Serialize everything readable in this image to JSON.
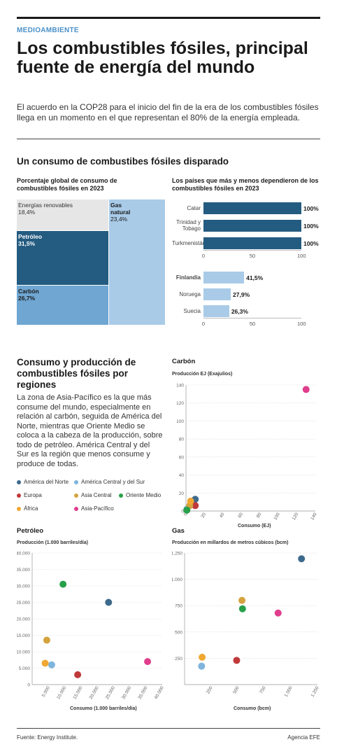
{
  "header": {
    "kicker": "MEDIOAMBIENTE",
    "title": "Los combustibles fósiles, principal fuente de energía del mundo",
    "subtitle": "El acuerdo en la COP28 para el inicio del fin de la era de los combustibles fósiles llega en un momento en el que representan el 80% de la energía empleada."
  },
  "section1": {
    "title": "Un consumo de combustibes fósiles disparado"
  },
  "section2": {
    "title": "Consumo y producción de combustibles fósiles por regiones",
    "text": "La zona de Asia-Pacífico es la que más consume del mundo, especialmente en relación al carbón, seguida de América del Norte, mientras que Oriente Medio se coloca a la cabeza de la producción, sobre todo de petróleo. América Central y del Sur es la región que menos consume y produce de todas."
  },
  "legend": [
    {
      "name": "América del Norte",
      "color": "#3d6a8c"
    },
    {
      "name": "América Central y del Sur",
      "color": "#7fb4dc"
    },
    {
      "name": "Europa",
      "color": "#c0393a"
    },
    {
      "name": "Asia Central",
      "color": "#d4a33e"
    },
    {
      "name": "Oriente Medio",
      "color": "#27a04a"
    },
    {
      "name": "África",
      "color": "#f0a832"
    },
    {
      "name": "Asia-Pacífico",
      "color": "#e03d8c"
    }
  ],
  "footer": {
    "source": "Fuente: Energy Institute.",
    "agency": "Agencia EFE"
  },
  "chart_data": [
    {
      "type": "treemap",
      "title": "Porcentaje global de consumo de combustibles fósiles en 2023",
      "cells": [
        {
          "name": "Energías renovables",
          "value": "18,4%",
          "color": "#e6e6e6"
        },
        {
          "name": "Petróleo",
          "value": "31,5%",
          "color": "#245b80"
        },
        {
          "name": "Carbón",
          "value": "26,7%",
          "color": "#6fa6d2"
        },
        {
          "name": "Gas natural",
          "value": "23,4%",
          "color": "#a9cbe8"
        }
      ]
    },
    {
      "type": "bar",
      "title": "Los países que más y menos dependieron de los combustibles fósiles en 2023",
      "orientation": "horizontal",
      "groups": [
        {
          "color": "#245b80",
          "categories": [
            "Catar",
            "Trinidad y Tobago",
            "Turkmenistán"
          ],
          "values": [
            100,
            100,
            100
          ],
          "labels": [
            "100%",
            "100%",
            "100%"
          ]
        },
        {
          "color": "#a9cbe8",
          "categories": [
            "Finlandia",
            "Noruega",
            "Suecia"
          ],
          "values": [
            41.5,
            27.9,
            26.3
          ],
          "labels": [
            "41,5%",
            "27,9%",
            "26,3%"
          ]
        }
      ],
      "xticks": [
        "0",
        "50",
        "100"
      ],
      "xlim": [
        0,
        100
      ]
    },
    {
      "type": "scatter",
      "title": "Carbón",
      "ylabel": "Producción EJ (Exajulios)",
      "xlabel": "Consumo (EJ)",
      "xlim": [
        0,
        140
      ],
      "ylim": [
        0,
        140
      ],
      "xticks": [
        "0",
        "20",
        "40",
        "60",
        "80",
        "100",
        "120",
        "140"
      ],
      "yticks": [
        "0",
        "20",
        "40",
        "60",
        "80",
        "100",
        "120",
        "140"
      ],
      "points": [
        {
          "region": "América del Norte",
          "x": 10,
          "y": 13
        },
        {
          "region": "América Central y del Sur",
          "x": 1,
          "y": 2
        },
        {
          "region": "Europa",
          "x": 10,
          "y": 6
        },
        {
          "region": "Asia Central",
          "x": 4,
          "y": 6
        },
        {
          "region": "Oriente Medio",
          "x": 1,
          "y": 1
        },
        {
          "region": "África",
          "x": 5,
          "y": 11
        },
        {
          "region": "Asia-Pacífico",
          "x": 130,
          "y": 135
        }
      ]
    },
    {
      "type": "scatter",
      "title": "Petróleo",
      "ylabel": "Producción (1.000 barriles/día)",
      "xlabel": "Consumo (1.000 barriles/día)",
      "xlim": [
        0,
        40000
      ],
      "ylim": [
        0,
        40000
      ],
      "xticks": [
        "5.000",
        "10.000",
        "15.000",
        "20.000",
        "25.000",
        "30.000",
        "35.000",
        "40.000"
      ],
      "yticks": [
        "0",
        "5.000",
        "10.000",
        "15.000",
        "20.000",
        "25.000",
        "30.000",
        "35.000",
        "40.000"
      ],
      "points": [
        {
          "region": "América del Norte",
          "x": 23500,
          "y": 25000
        },
        {
          "region": "América Central y del Sur",
          "x": 6000,
          "y": 6000
        },
        {
          "region": "Europa",
          "x": 14000,
          "y": 3000
        },
        {
          "region": "Asia Central",
          "x": 4500,
          "y": 13500
        },
        {
          "region": "Oriente Medio",
          "x": 9500,
          "y": 30500
        },
        {
          "region": "África",
          "x": 4000,
          "y": 6500
        },
        {
          "region": "Asia-Pacífico",
          "x": 35500,
          "y": 7000
        }
      ]
    },
    {
      "type": "scatter",
      "title": "Gas",
      "ylabel": "Producción en millardos de metros cúbicos (bcm)",
      "xlabel": "Consumo (bcm)",
      "xlim": [
        0,
        1250
      ],
      "ylim": [
        0,
        1250
      ],
      "xticks": [
        "250",
        "500",
        "750",
        "1.000",
        "1.250"
      ],
      "yticks": [
        "250",
        "500",
        "750",
        "1.000",
        "1.250"
      ],
      "points": [
        {
          "region": "América del Norte",
          "x": 1100,
          "y": 1195
        },
        {
          "region": "América Central y del Sur",
          "x": 160,
          "y": 175
        },
        {
          "region": "Europa",
          "x": 490,
          "y": 230
        },
        {
          "region": "Asia Central",
          "x": 540,
          "y": 800
        },
        {
          "region": "Oriente Medio",
          "x": 545,
          "y": 720
        },
        {
          "region": "África",
          "x": 165,
          "y": 260
        },
        {
          "region": "Asia-Pacífico",
          "x": 880,
          "y": 680
        }
      ]
    }
  ]
}
